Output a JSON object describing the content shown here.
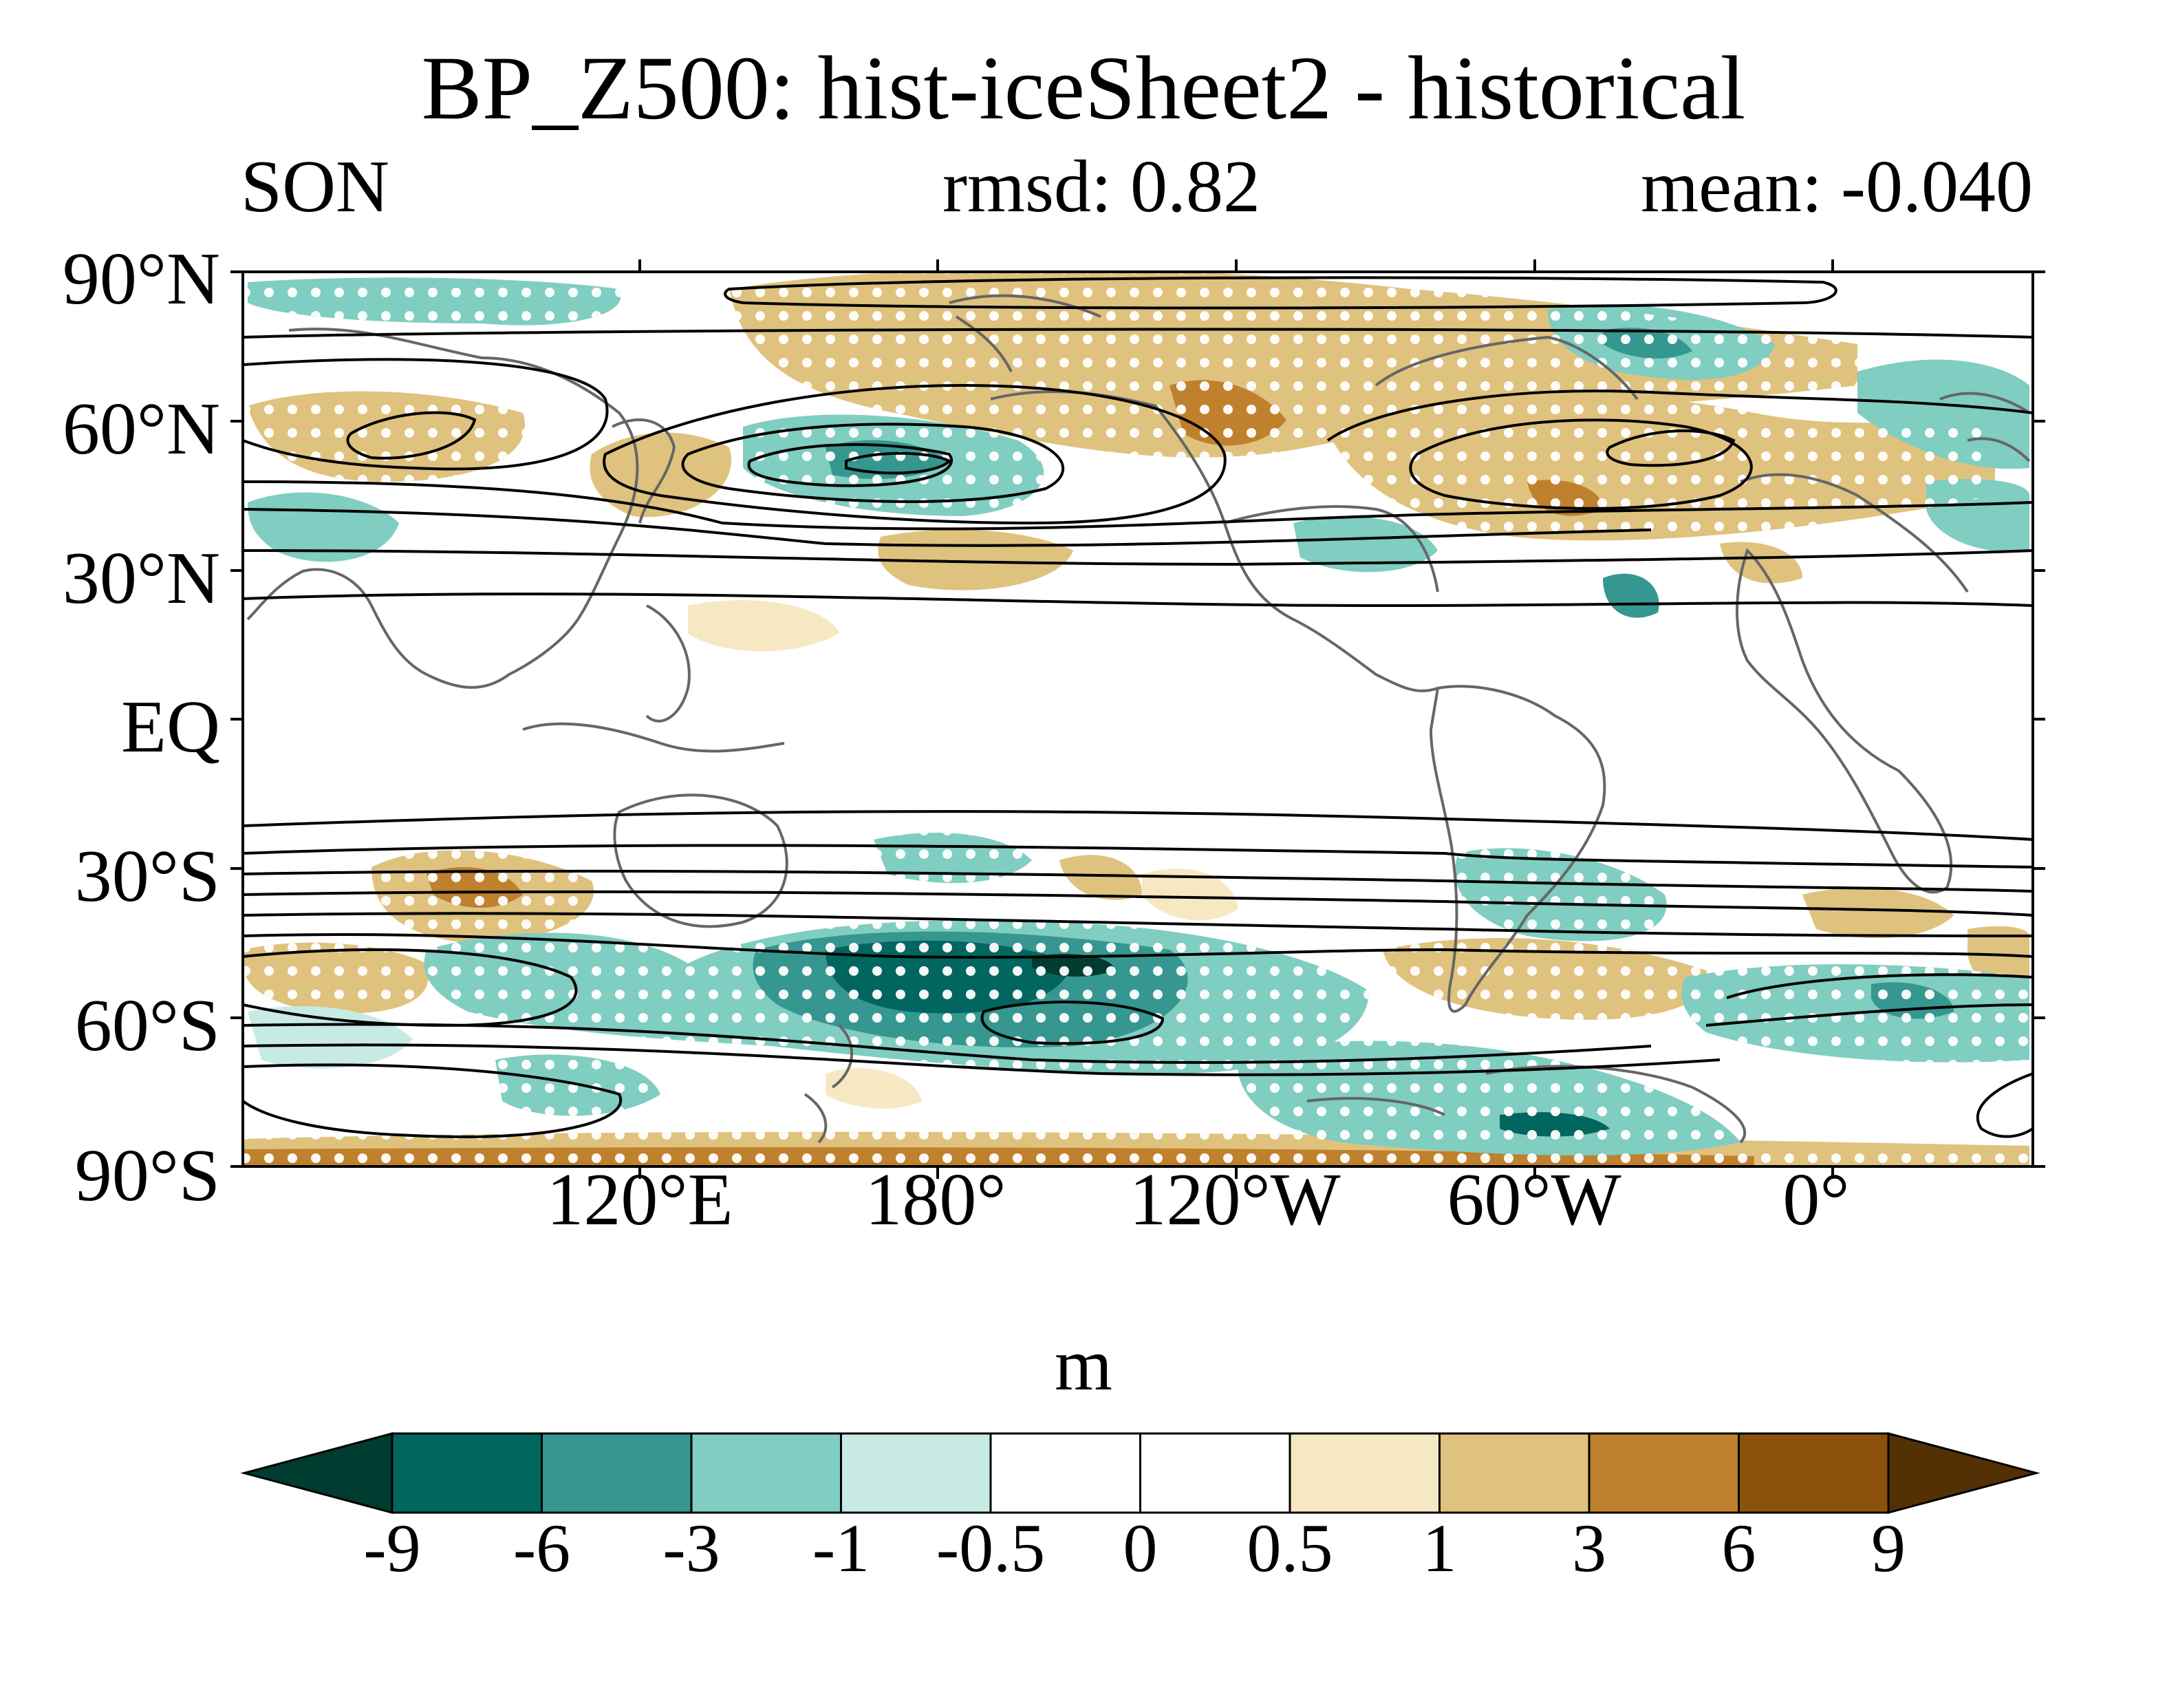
{
  "title": "BP_Z500: hist-iceSheet2 - historical",
  "season": "SON",
  "rmsd": "rmsd: 0.82",
  "mean": "mean: -0.040",
  "units": "m",
  "lat_labels": [
    "90°N",
    "60°N",
    "30°N",
    "EQ",
    "30°S",
    "60°S",
    "90°S"
  ],
  "lon_labels": [
    "120°E",
    "180°",
    "120°W",
    "60°W",
    "0°"
  ],
  "colorbar": {
    "labels": [
      "-9",
      "-6",
      "-3",
      "-1",
      "-0.5",
      "0",
      "0.5",
      "1",
      "3",
      "6",
      "9"
    ],
    "colors": [
      "#003c30",
      "#01665e",
      "#35978f",
      "#80cdc1",
      "#c7eae5",
      "#ffffff",
      "#ffffff",
      "#f6e8c3",
      "#dfc27d",
      "#bf812d",
      "#8c510a",
      "#543005"
    ]
  },
  "colors": {
    "coast": "#666666",
    "contour": "#000000",
    "stipple": "#ffffff"
  }
}
